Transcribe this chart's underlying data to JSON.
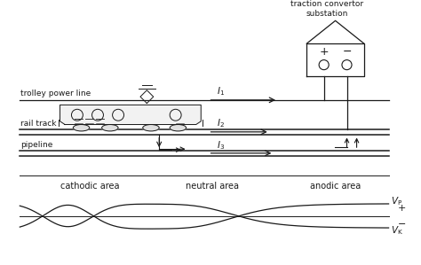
{
  "bg_color": "#ffffff",
  "line_color": "#1a1a1a",
  "text_color": "#1a1a1a",
  "fig_width": 4.74,
  "fig_height": 2.99,
  "dpi": 100,
  "label_trolley": "trolley power line",
  "label_rail": "rail track",
  "label_pipeline": "pipeline",
  "label_cathodic": "cathodic area",
  "label_neutral": "neutral area",
  "label_anodic": "anodic area",
  "substation_label": "traction convertor\nsubstation",
  "I1_label": "$I_1$",
  "I2_label": "$I_2$",
  "I3_label": "$I_3$",
  "Vp_label": "$V_{\\mathrm{P}}$",
  "Vk_label": "$V_{\\mathrm{K}}$"
}
